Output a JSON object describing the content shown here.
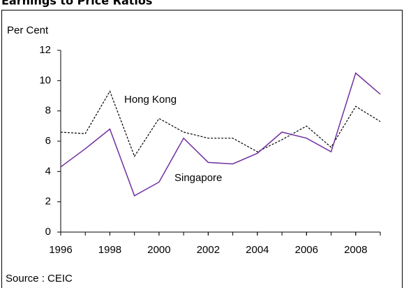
{
  "chart_data": {
    "type": "line",
    "title": "Earnings to Price Ratios",
    "y_label": "Per Cent",
    "source": "Source :  CEIC",
    "x": [
      1996,
      1997,
      1998,
      1999,
      2000,
      2001,
      2002,
      2003,
      2004,
      2005,
      2006,
      2007,
      2008,
      2009
    ],
    "series": [
      {
        "name": "Hong Kong",
        "color": "#000000",
        "dashed": true,
        "values": [
          6.6,
          6.5,
          9.3,
          5.0,
          7.5,
          6.6,
          6.2,
          6.2,
          5.3,
          6.1,
          7.0,
          5.6,
          8.3,
          7.3
        ]
      },
      {
        "name": "Singapore",
        "color": "#7030a0",
        "dashed": false,
        "values": [
          4.3,
          5.5,
          6.8,
          2.4,
          3.3,
          6.2,
          4.6,
          4.5,
          5.2,
          6.6,
          6.2,
          5.3,
          10.5,
          9.1
        ]
      }
    ],
    "xlim": [
      1996,
      2009
    ],
    "xticks": [
      1996,
      1998,
      2000,
      2002,
      2004,
      2006,
      2008
    ],
    "ylim": [
      0,
      12
    ],
    "yticks": [
      0,
      2,
      4,
      6,
      8,
      10,
      12
    ]
  }
}
